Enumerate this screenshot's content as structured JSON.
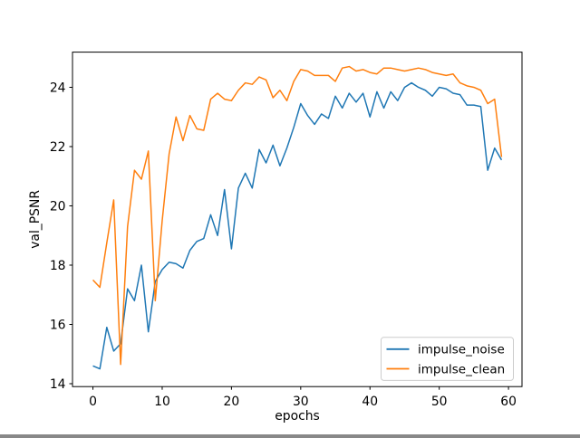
{
  "figure": {
    "background": "#ffffff",
    "plot_background": "#ffffff",
    "spine_color": "#000000",
    "text_color": "#000000"
  },
  "chart_data": {
    "type": "line",
    "title": "",
    "xlabel": "epochs",
    "ylabel": "val_PSNR",
    "grid": false,
    "xlim": [
      -2.95,
      61.95
    ],
    "ylim": [
      13.902,
      25.187
    ],
    "x_ticks": [
      0,
      10,
      20,
      30,
      40,
      50,
      60
    ],
    "y_ticks": [
      14,
      16,
      18,
      20,
      22,
      24
    ],
    "legend": {
      "position": "lower right",
      "border_color": "#cccccc",
      "entries": [
        "impulse_noise",
        "impulse_clean"
      ]
    },
    "x": [
      0,
      1,
      2,
      3,
      4,
      5,
      6,
      7,
      8,
      9,
      10,
      11,
      12,
      13,
      14,
      15,
      16,
      17,
      18,
      19,
      20,
      21,
      22,
      23,
      24,
      25,
      26,
      27,
      28,
      29,
      30,
      31,
      32,
      33,
      34,
      35,
      36,
      37,
      38,
      39,
      40,
      41,
      42,
      43,
      44,
      45,
      46,
      47,
      48,
      49,
      50,
      51,
      52,
      53,
      54,
      55,
      56,
      57,
      58,
      59
    ],
    "series": [
      {
        "name": "impulse_noise",
        "color": "#1f77b4",
        "values": [
          14.6,
          14.5,
          15.9,
          15.1,
          15.35,
          17.2,
          16.8,
          18.0,
          15.75,
          17.45,
          17.85,
          18.1,
          18.05,
          17.9,
          18.5,
          18.8,
          18.9,
          19.7,
          19.0,
          20.55,
          18.55,
          20.6,
          21.1,
          20.6,
          21.9,
          21.45,
          22.05,
          21.35,
          21.95,
          22.65,
          23.45,
          23.05,
          22.75,
          23.1,
          22.95,
          23.7,
          23.3,
          23.8,
          23.5,
          23.8,
          23.0,
          23.85,
          23.3,
          23.85,
          23.55,
          24.0,
          24.15,
          24.0,
          23.9,
          23.7,
          24.0,
          23.95,
          23.8,
          23.75,
          23.4,
          23.4,
          23.35,
          21.2,
          21.95,
          21.55
        ]
      },
      {
        "name": "impulse_clean",
        "color": "#ff7f0e",
        "values": [
          17.5,
          17.25,
          18.75,
          20.2,
          14.65,
          19.3,
          21.2,
          20.9,
          21.85,
          16.8,
          19.5,
          21.75,
          23.0,
          22.2,
          23.05,
          22.6,
          22.55,
          23.6,
          23.8,
          23.6,
          23.55,
          23.9,
          24.15,
          24.1,
          24.35,
          24.25,
          23.65,
          23.9,
          23.55,
          24.2,
          24.6,
          24.55,
          24.4,
          24.4,
          24.4,
          24.2,
          24.65,
          24.7,
          24.55,
          24.6,
          24.5,
          24.45,
          24.65,
          24.65,
          24.6,
          24.55,
          24.6,
          24.65,
          24.6,
          24.5,
          24.45,
          24.4,
          24.45,
          24.15,
          24.05,
          24.0,
          23.9,
          23.45,
          23.6,
          21.65
        ]
      }
    ]
  }
}
